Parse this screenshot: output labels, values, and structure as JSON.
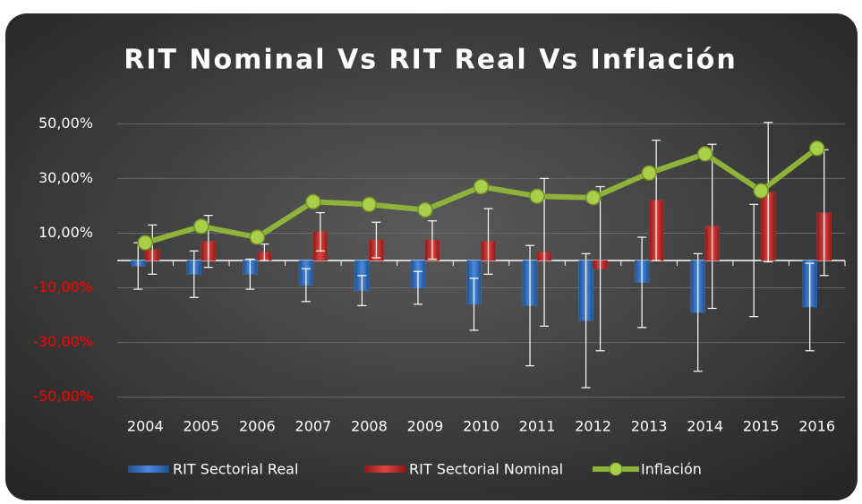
{
  "chart_data": {
    "type": "bar_line",
    "title": "RIT Nominal Vs RIT Real Vs Inflación",
    "categories": [
      "2004",
      "2005",
      "2006",
      "2007",
      "2008",
      "2009",
      "2010",
      "2011",
      "2012",
      "2013",
      "2014",
      "2015",
      "2016"
    ],
    "series": [
      {
        "name": "RIT Sectorial Real",
        "type": "bar",
        "color": "#3a78c8",
        "values": [
          -2,
          -5,
          -5,
          -9,
          -11,
          -10,
          -16,
          -16.5,
          -22,
          -8,
          -19,
          0,
          -17
        ],
        "errors": [
          8.5,
          8.5,
          5.5,
          6,
          5.5,
          6,
          9.5,
          22,
          24.5,
          16.5,
          21.5,
          20.5,
          16
        ]
      },
      {
        "name": "RIT Sectorial Nominal",
        "type": "bar",
        "color": "#c8302e",
        "values": [
          4,
          7,
          3,
          10.5,
          7.5,
          7.5,
          7,
          3,
          -3,
          22,
          12.5,
          25,
          17.5
        ],
        "errors": [
          9,
          9.5,
          3,
          7,
          6.5,
          7,
          12,
          27,
          30,
          22,
          30,
          25.5,
          23
        ]
      },
      {
        "name": "Inflación",
        "type": "line",
        "color": "#8db33a",
        "values": [
          6.5,
          12.5,
          8.5,
          21.5,
          20.5,
          18.5,
          27,
          23.5,
          23,
          32,
          39,
          25.5,
          41
        ]
      }
    ],
    "ylim": [
      -55,
      55
    ],
    "yticks": [
      {
        "value": 50,
        "label": "50,00%"
      },
      {
        "value": 30,
        "label": "30,00%"
      },
      {
        "value": 10,
        "label": "10,00%"
      },
      {
        "value": -10,
        "label": "-10,00%"
      },
      {
        "value": -30,
        "label": "-30,00%"
      },
      {
        "value": -50,
        "label": "-50,00%"
      }
    ],
    "negative_label_color": "#ff0000",
    "grid": true,
    "legend": "bottom"
  }
}
